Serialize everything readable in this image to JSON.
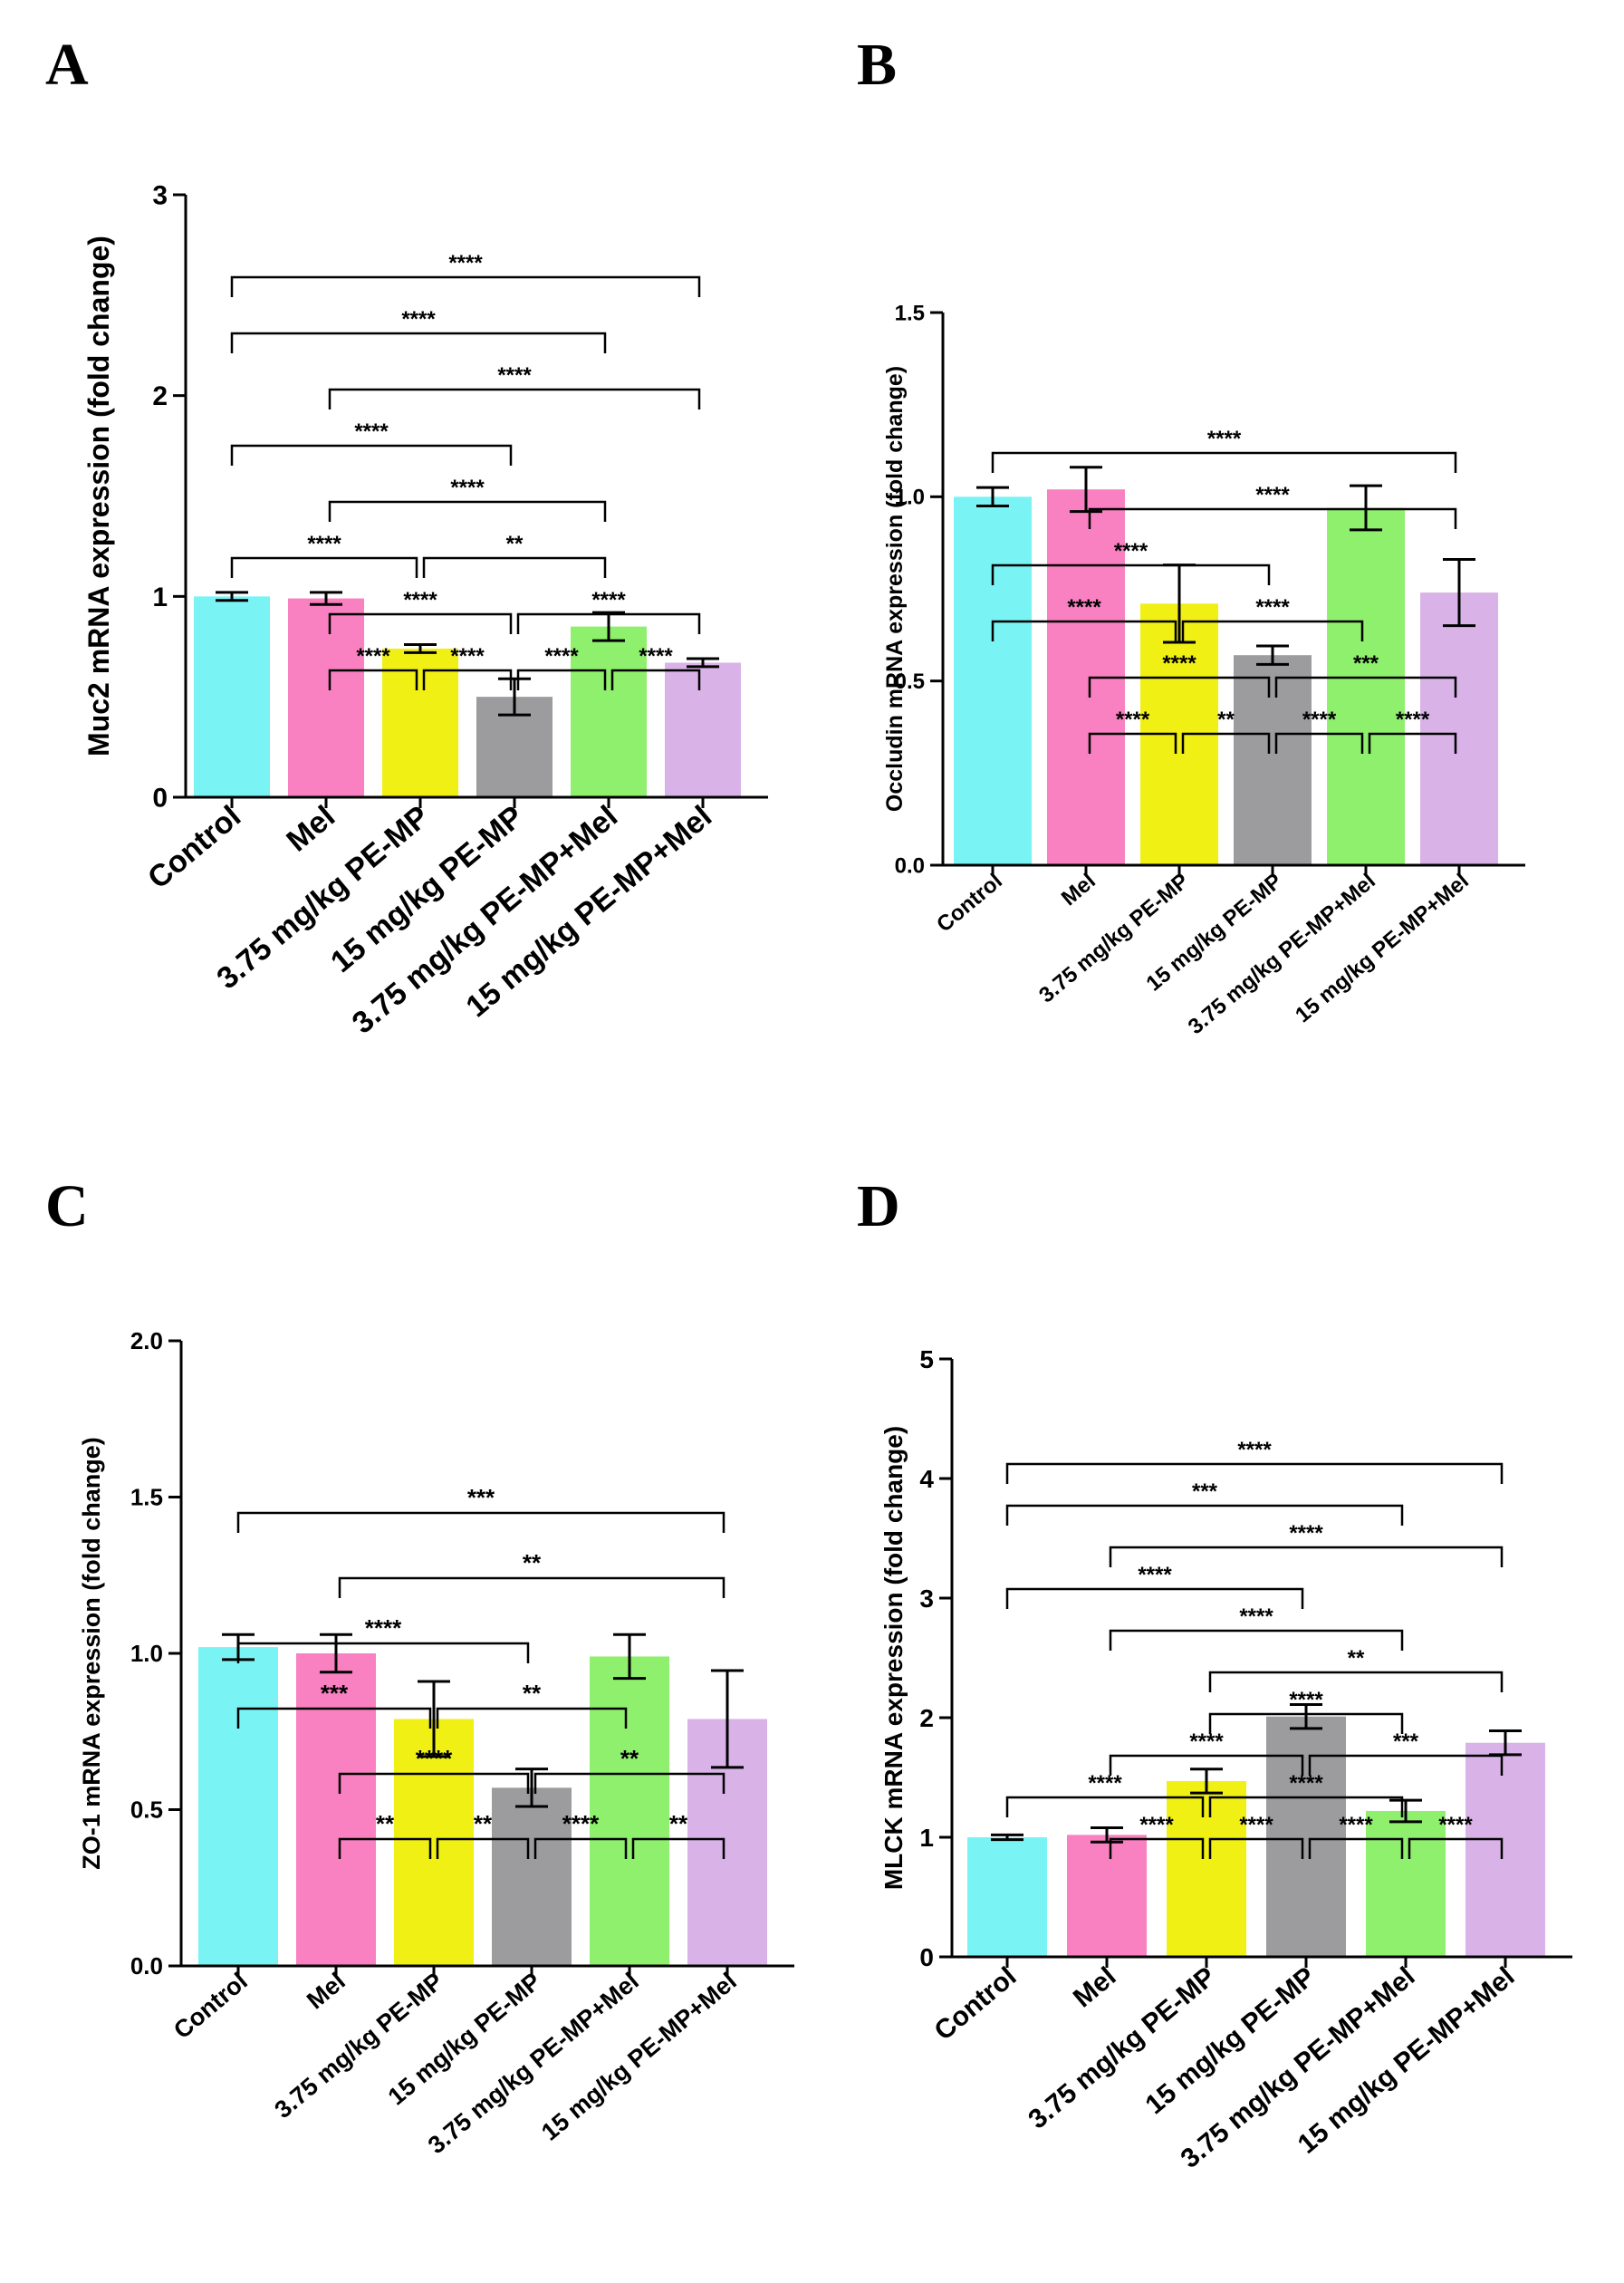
{
  "panels": [
    {
      "letter": "A"
    },
    {
      "letter": "B"
    },
    {
      "letter": "C"
    },
    {
      "letter": "D"
    }
  ],
  "chart_data": [
    {
      "type": "bar",
      "title": "",
      "xlabel": "",
      "ylabel": "Muc2 mRNA expression (fold change)",
      "ylim": [
        0,
        3
      ],
      "yticks": [
        "0",
        "1",
        "2",
        "3"
      ],
      "categories": [
        "Control",
        "Mel",
        "3.75 mg/kg PE-MP",
        "15 mg/kg PE-MP",
        "3.75 mg/kg PE-MP+Mel",
        "15 mg/kg PE-MP+Mel"
      ],
      "colors": [
        "#79f3f4",
        "#f981c1",
        "#f1f015",
        "#9c9c9f",
        "#8ff06d",
        "#d9b3e8"
      ],
      "values": [
        1.0,
        0.99,
        0.74,
        0.5,
        0.85,
        0.67
      ],
      "errors": [
        0.02,
        0.03,
        0.02,
        0.09,
        0.07,
        0.02
      ],
      "comparisons": [
        {
          "from": 0,
          "to": 5,
          "label": "****"
        },
        {
          "from": 1,
          "to": 5,
          "label": "****"
        },
        {
          "from": 0,
          "to": 4,
          "label": "****"
        },
        {
          "from": 1,
          "to": 4,
          "label": "****"
        },
        {
          "from": 0,
          "to": 3,
          "label": "****"
        },
        {
          "from": 1,
          "to": 3,
          "label": "****"
        },
        {
          "from": 3,
          "to": 5,
          "label": "****"
        },
        {
          "from": 0,
          "to": 2,
          "label": "****"
        },
        {
          "from": 2,
          "to": 4,
          "label": "**"
        },
        {
          "from": 1,
          "to": 2,
          "label": "****"
        },
        {
          "from": 2,
          "to": 3,
          "label": "****"
        },
        {
          "from": 3,
          "to": 4,
          "label": "****"
        },
        {
          "from": 4,
          "to": 5,
          "label": "****"
        }
      ]
    },
    {
      "type": "bar",
      "title": "",
      "xlabel": "",
      "ylabel": "Occludin mRNA expression (fold change)",
      "ylim": [
        0,
        1.5
      ],
      "yticks": [
        "0.0",
        "0.5",
        "1.0",
        "1.5"
      ],
      "categories": [
        "Control",
        "Mel",
        "3.75 mg/kg PE-MP",
        "15 mg/kg PE-MP",
        "3.75 mg/kg PE-MP+Mel",
        "15 mg/kg PE-MP+Mel"
      ],
      "colors": [
        "#79f3f4",
        "#f981c1",
        "#f1f015",
        "#9c9c9f",
        "#8ff06d",
        "#d9b3e8"
      ],
      "values": [
        1.0,
        1.02,
        0.71,
        0.57,
        0.97,
        0.74
      ],
      "errors": [
        0.025,
        0.06,
        0.105,
        0.025,
        0.06,
        0.09
      ],
      "comparisons": [
        {
          "from": 0,
          "to": 5,
          "label": "****"
        },
        {
          "from": 1,
          "to": 5,
          "label": "****"
        },
        {
          "from": 0,
          "to": 3,
          "label": "****"
        },
        {
          "from": 1,
          "to": 3,
          "label": "****"
        },
        {
          "from": 3,
          "to": 5,
          "label": "***"
        },
        {
          "from": 0,
          "to": 2,
          "label": "****"
        },
        {
          "from": 2,
          "to": 4,
          "label": "****"
        },
        {
          "from": 1,
          "to": 2,
          "label": "****"
        },
        {
          "from": 2,
          "to": 3,
          "label": "**"
        },
        {
          "from": 3,
          "to": 4,
          "label": "****"
        },
        {
          "from": 4,
          "to": 5,
          "label": "****"
        }
      ]
    },
    {
      "type": "bar",
      "title": "",
      "xlabel": "",
      "ylabel": "ZO-1 mRNA expression (fold change)",
      "ylim": [
        0,
        2
      ],
      "yticks": [
        "0.0",
        "0.5",
        "1.0",
        "1.5",
        "2.0"
      ],
      "categories": [
        "Control",
        "Mel",
        "3.75 mg/kg PE-MP",
        "15 mg/kg PE-MP",
        "3.75 mg/kg PE-MP+Mel",
        "15 mg/kg PE-MP+Mel"
      ],
      "colors": [
        "#79f3f4",
        "#f981c1",
        "#f1f015",
        "#9c9c9f",
        "#8ff06d",
        "#d9b3e8"
      ],
      "values": [
        1.02,
        1.0,
        0.79,
        0.57,
        0.99,
        0.79
      ],
      "errors": [
        0.04,
        0.06,
        0.12,
        0.06,
        0.07,
        0.155
      ],
      "comparisons": [
        {
          "from": 0,
          "to": 5,
          "label": "***"
        },
        {
          "from": 1,
          "to": 5,
          "label": "**"
        },
        {
          "from": 0,
          "to": 3,
          "label": "****"
        },
        {
          "from": 1,
          "to": 3,
          "label": "****"
        },
        {
          "from": 3,
          "to": 5,
          "label": "**"
        },
        {
          "from": 0,
          "to": 2,
          "label": "***"
        },
        {
          "from": 2,
          "to": 4,
          "label": "**"
        },
        {
          "from": 1,
          "to": 2,
          "label": "**"
        },
        {
          "from": 2,
          "to": 3,
          "label": "**"
        },
        {
          "from": 3,
          "to": 4,
          "label": "****"
        },
        {
          "from": 4,
          "to": 5,
          "label": "**"
        }
      ]
    },
    {
      "type": "bar",
      "title": "",
      "xlabel": "",
      "ylabel": "MLCK mRNA expression (fold change)",
      "ylim": [
        0,
        5
      ],
      "yticks": [
        "0",
        "1",
        "2",
        "3",
        "4",
        "5"
      ],
      "categories": [
        "Control",
        "Mel",
        "3.75 mg/kg PE-MP",
        "15 mg/kg PE-MP",
        "3.75 mg/kg PE-MP+Mel",
        "15 mg/kg PE-MP+Mel"
      ],
      "colors": [
        "#79f3f4",
        "#f981c1",
        "#f1f015",
        "#9c9c9f",
        "#8ff06d",
        "#d9b3e8"
      ],
      "values": [
        1.0,
        1.02,
        1.47,
        2.01,
        1.22,
        1.79
      ],
      "errors": [
        0.02,
        0.06,
        0.1,
        0.1,
        0.09,
        0.1
      ],
      "comparisons": [
        {
          "from": 0,
          "to": 5,
          "label": "****"
        },
        {
          "from": 1,
          "to": 5,
          "label": "****"
        },
        {
          "from": 0,
          "to": 4,
          "label": "***"
        },
        {
          "from": 2,
          "to": 4,
          "label": "****"
        },
        {
          "from": 2,
          "to": 5,
          "label": "**"
        },
        {
          "from": 1,
          "to": 4,
          "label": "****"
        },
        {
          "from": 0,
          "to": 3,
          "label": "****"
        },
        {
          "from": 1,
          "to": 3,
          "label": "****"
        },
        {
          "from": 3,
          "to": 5,
          "label": "***"
        },
        {
          "from": 0,
          "to": 2,
          "label": "****"
        },
        {
          "from": 2,
          "to": 4,
          "label": "****"
        },
        {
          "from": 1,
          "to": 2,
          "label": "****"
        },
        {
          "from": 2,
          "to": 3,
          "label": "****"
        },
        {
          "from": 3,
          "to": 4,
          "label": "****"
        },
        {
          "from": 4,
          "to": 5,
          "label": "****"
        }
      ]
    }
  ]
}
